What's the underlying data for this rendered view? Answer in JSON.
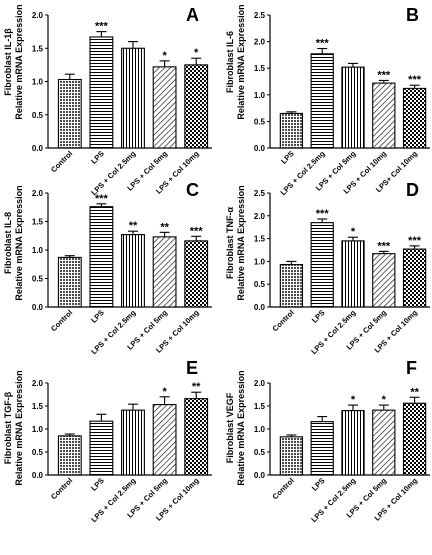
{
  "chart_data": [
    {
      "type": "bar",
      "panel_letter": "A",
      "ylabel_line1": "Fibroblast IL-1β",
      "ylabel_line2": "Relative mRNA Expression",
      "ylim": [
        0,
        2.0
      ],
      "yticks": [
        "0.0",
        "0.5",
        "1.0",
        "1.5",
        "2.0"
      ],
      "categories": [
        "Control",
        "LPS",
        "LPS + Col 2.5mg",
        "LPS + Col 5mg",
        "LPS + Col 10mg"
      ],
      "values": [
        1.03,
        1.67,
        1.5,
        1.22,
        1.25
      ],
      "errors": [
        0.08,
        0.08,
        0.1,
        0.09,
        0.1
      ],
      "significance": [
        "",
        "***",
        "",
        "*",
        "*"
      ]
    },
    {
      "type": "bar",
      "panel_letter": "B",
      "ylabel_line1": "Fibroblast IL-6",
      "ylabel_line2": "Relative mRNA Expression",
      "ylim": [
        0,
        2.5
      ],
      "yticks": [
        "0.0",
        "0.5",
        "1.0",
        "1.5",
        "2.0",
        "2.5"
      ],
      "categories": [
        "LPS",
        "LPS + Col 2.5mg",
        "LPS + Col 5mg",
        "LPS + Col 10mg",
        "LPS+ Col 10mg"
      ],
      "values": [
        0.65,
        1.77,
        1.52,
        1.22,
        1.12
      ],
      "errors": [
        0.03,
        0.1,
        0.07,
        0.05,
        0.06
      ],
      "significance": [
        "",
        "***",
        "",
        "***",
        "***"
      ]
    },
    {
      "type": "bar",
      "panel_letter": "C",
      "ylabel_line1": "Fibroblast IL-8",
      "ylabel_line2": "Relative mRNA Expression",
      "ylim": [
        0,
        2.0
      ],
      "yticks": [
        "0.0",
        "0.5",
        "1.0",
        "1.5",
        "2.0"
      ],
      "categories": [
        "Control",
        "LPS",
        "LPS + Col 2.5mg",
        "LPS + Col 5mg",
        "LPS + Col 10mg"
      ],
      "values": [
        0.87,
        1.76,
        1.27,
        1.23,
        1.16
      ],
      "errors": [
        0.03,
        0.05,
        0.06,
        0.08,
        0.08
      ],
      "significance": [
        "",
        "***",
        "**",
        "**",
        "***"
      ]
    },
    {
      "type": "bar",
      "panel_letter": "D",
      "ylabel_line1": "Fibroblast TNF-α",
      "ylabel_line2": "Relative mRNA Expression",
      "ylim": [
        0,
        2.5
      ],
      "yticks": [
        "0.0",
        "0.5",
        "1.0",
        "1.5",
        "2.0",
        "2.5"
      ],
      "categories": [
        "Control",
        "LPS",
        "LPS + Col 2.5mg",
        "LPS + Col 5mg",
        "LPS + Col 10mg"
      ],
      "values": [
        0.93,
        1.85,
        1.45,
        1.17,
        1.27
      ],
      "errors": [
        0.07,
        0.08,
        0.08,
        0.05,
        0.07
      ],
      "significance": [
        "",
        "***",
        "*",
        "***",
        "***"
      ]
    },
    {
      "type": "bar",
      "panel_letter": "E",
      "ylabel_line1": "Fibroblast TGF-β",
      "ylabel_line2": "Relative mRNA Expression",
      "ylim": [
        0,
        2.0
      ],
      "yticks": [
        "0.0",
        "0.5",
        "1.0",
        "1.5",
        "2.0"
      ],
      "categories": [
        "Control",
        "LPS",
        "LPS + Col 2.5mg",
        "LPS + Col 5mg",
        "LPS + Col 10mg"
      ],
      "values": [
        0.85,
        1.17,
        1.41,
        1.53,
        1.66
      ],
      "errors": [
        0.04,
        0.15,
        0.13,
        0.17,
        0.14
      ],
      "significance": [
        "",
        "",
        "",
        "*",
        "**"
      ]
    },
    {
      "type": "bar",
      "panel_letter": "F",
      "ylabel_line1": "Fibroblast VEGF",
      "ylabel_line2": "Relative mRNA Expression",
      "ylim": [
        0,
        2.0
      ],
      "yticks": [
        "0.0",
        "0.5",
        "1.0",
        "1.5",
        "2.0"
      ],
      "categories": [
        "Control",
        "LPS",
        "LPS + Col 2.5mg",
        "LPS + Col 5mg",
        "LPS + Col 10mg"
      ],
      "values": [
        0.83,
        1.16,
        1.4,
        1.41,
        1.56
      ],
      "errors": [
        0.04,
        0.11,
        0.12,
        0.11,
        0.13
      ],
      "significance": [
        "",
        "",
        "*",
        "*",
        "**"
      ]
    }
  ]
}
